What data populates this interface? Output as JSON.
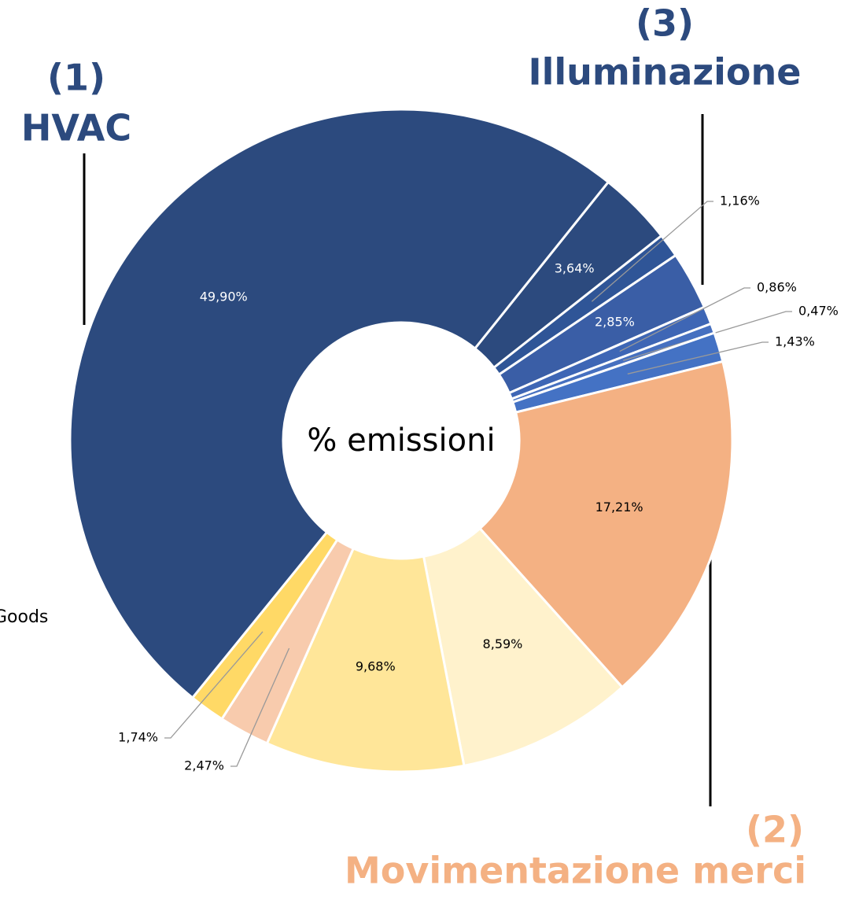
{
  "chart_data": {
    "type": "donut",
    "values": [
      3.64,
      1.16,
      2.85,
      0.86,
      0.47,
      1.43,
      17.21,
      8.59,
      9.68,
      2.47,
      1.74,
      49.9
    ],
    "value_labels": [
      "3,64%",
      "1,16%",
      "2,85%",
      "0,86%",
      "0,47%",
      "1,43%",
      "17,21%",
      "8,59%",
      "9,68%",
      "2,47%",
      "1,74%",
      "49,90%"
    ],
    "colors": [
      "#2c4a7e",
      "#2f5597",
      "#3a5ea6",
      "#3e66b5",
      "#4670c0",
      "#4472c4",
      "#f4b183",
      "#fff2cc",
      "#ffe699",
      "#f8cbad",
      "#ffd966",
      "#2c4a7e"
    ],
    "center_label": "% emissioni",
    "groups": [
      {
        "number": "(1)",
        "name": "HVAC",
        "color": "#2c4a7e"
      },
      {
        "number": "(3)",
        "name": "Illuminazione",
        "color": "#2c4a7e"
      },
      {
        "number": "(2)",
        "name": "Movimentazione merci",
        "color": "#f4b183"
      }
    ],
    "annotation": "Goods"
  }
}
